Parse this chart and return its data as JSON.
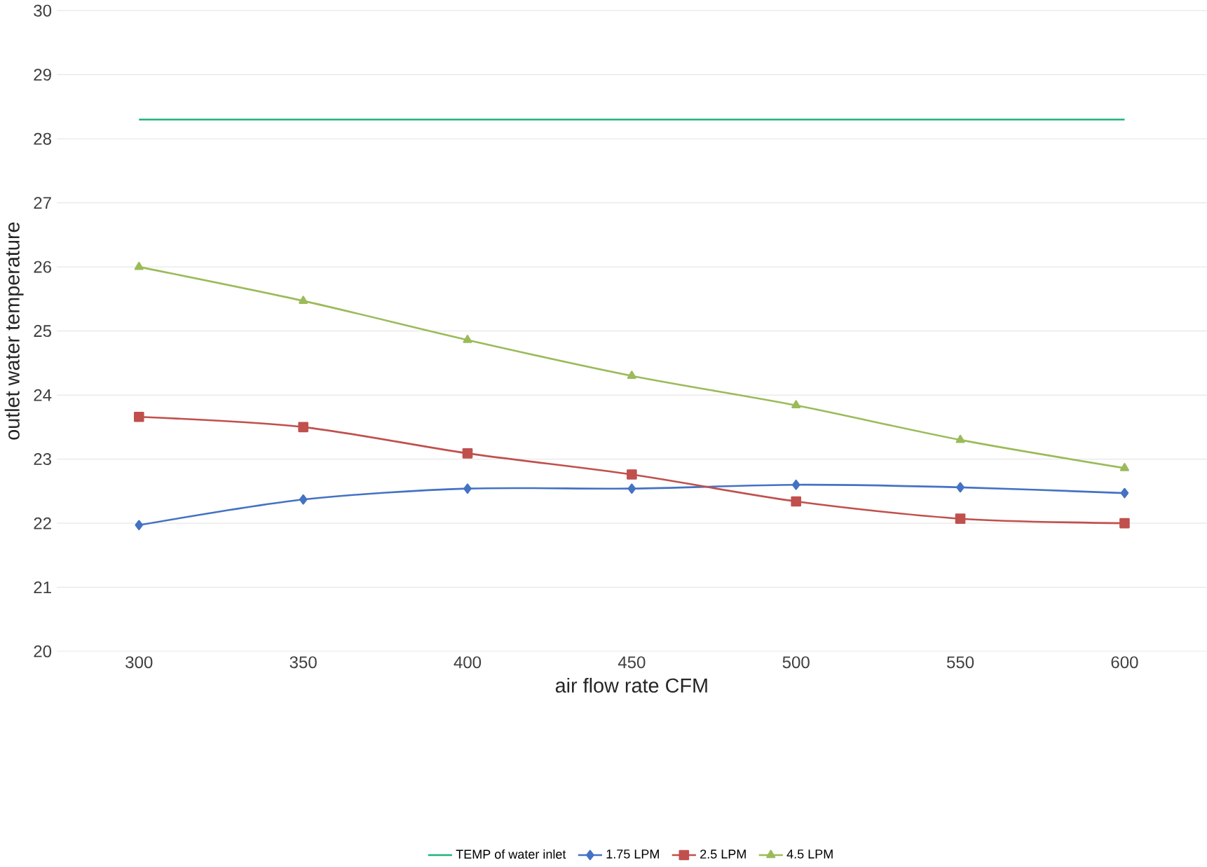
{
  "chart_data": {
    "type": "line",
    "xlabel": "air flow rate CFM",
    "ylabel": "outlet water temperature",
    "categories": [
      "300",
      "350",
      "400",
      "450",
      "500",
      "550",
      "600"
    ],
    "ylim": [
      20,
      30
    ],
    "yticks": [
      20,
      21,
      22,
      23,
      24,
      25,
      26,
      27,
      28,
      29,
      30
    ],
    "grid": "y",
    "legend": "bottom",
    "series": [
      {
        "name": "TEMP of water inlet",
        "color": "#1fb37a",
        "marker": "none",
        "values": [
          28.3,
          28.3,
          28.3,
          28.3,
          28.3,
          28.3,
          28.3
        ]
      },
      {
        "name": "1.75 LPM",
        "color": "#4472c4",
        "marker": "diamond",
        "values": [
          21.97,
          22.37,
          22.54,
          22.54,
          22.6,
          22.56,
          22.47
        ]
      },
      {
        "name": "2.5 LPM",
        "color": "#c0504d",
        "marker": "square",
        "values": [
          23.66,
          23.5,
          23.09,
          22.76,
          22.34,
          22.07,
          22.0
        ]
      },
      {
        "name": "4.5 LPM",
        "color": "#9bbb59",
        "marker": "triangle",
        "values": [
          26.0,
          25.47,
          24.86,
          24.3,
          23.84,
          23.3,
          22.86
        ]
      }
    ]
  }
}
